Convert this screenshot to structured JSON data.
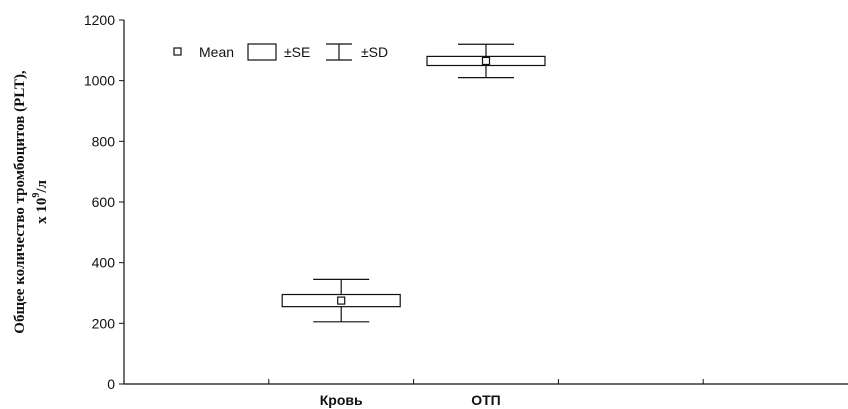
{
  "chart_data": {
    "type": "box",
    "ylabel_line1": "Общее количество тромбоцитов (PLT),",
    "ylabel_line2_prefix": "x 10",
    "ylabel_line2_sup": "9",
    "ylabel_line2_suffix": "/л",
    "ylim": [
      0,
      1200
    ],
    "yticks": [
      0,
      200,
      400,
      600,
      800,
      1000,
      1200
    ],
    "categories": [
      "Кровь",
      "ОТП"
    ],
    "stats": [
      {
        "category": "Кровь",
        "mean": 275,
        "se_low": 255,
        "se_high": 295,
        "sd_low": 205,
        "sd_high": 345
      },
      {
        "category": "ОТП",
        "mean": 1065,
        "se_low": 1050,
        "se_high": 1080,
        "sd_low": 1010,
        "sd_high": 1120
      }
    ],
    "legend": {
      "mean_label": "Mean",
      "se_label": "±SE",
      "sd_label": "±SD",
      "placement": "top-left"
    },
    "grid": false
  }
}
